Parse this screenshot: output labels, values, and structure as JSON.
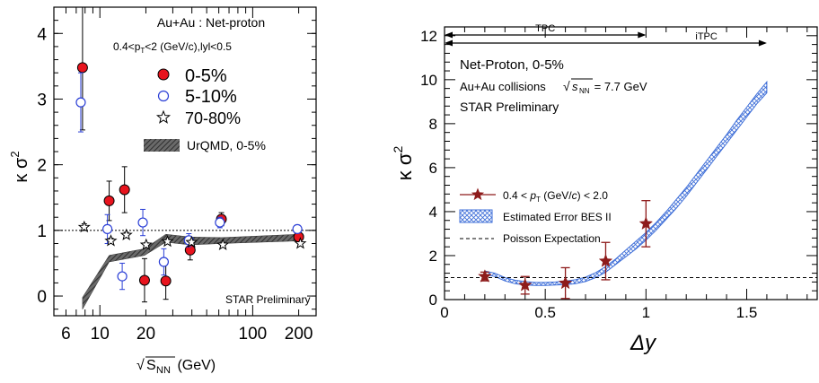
{
  "chart_data": [
    {
      "type": "scatter",
      "x_scale": "log",
      "xlim": [
        5,
        260
      ],
      "ylim": [
        -0.3,
        4.4
      ],
      "xticks": [
        6,
        10,
        20,
        100,
        200
      ],
      "yticks": [
        0,
        1,
        2,
        3,
        4
      ],
      "grid": false,
      "legend_position": "top-right",
      "ylabel_main": "κ σ",
      "ylabel_sup": "2",
      "xlabel_pre": "√",
      "xlabel_sub": "S",
      "xlabel_subscript": "NN",
      "xlabel_post": " (GeV)",
      "annotations": {
        "system": "Au+Au : Net-proton",
        "cuts": "0.4<p",
        "cuts_sub": "T",
        "cuts_rest": "<2 (GeV/c),lyl<0.5",
        "preliminary": "STAR Preliminary"
      },
      "reference_line": {
        "y": 1,
        "style": "dotted"
      },
      "series": [
        {
          "name": "0-5%",
          "marker": "filled-circle",
          "color": "#e8141e",
          "x": [
            7.7,
            11.5,
            14.5,
            19.6,
            27,
            39,
            62.4,
            200
          ],
          "y": [
            3.48,
            1.45,
            1.62,
            0.24,
            0.23,
            0.7,
            1.17,
            0.9
          ],
          "err": [
            0.95,
            0.3,
            0.35,
            0.33,
            0.28,
            0.15,
            0.1,
            0.06
          ]
        },
        {
          "name": "5-10%",
          "marker": "open-circle",
          "color": "#2b3fd6",
          "x": [
            7.5,
            11.2,
            14.0,
            19.1,
            26.2,
            38.2,
            61.0,
            196
          ],
          "y": [
            2.95,
            1.02,
            0.3,
            1.12,
            0.52,
            0.85,
            1.12,
            1.02
          ],
          "err": [
            0.45,
            0.22,
            0.2,
            0.2,
            0.2,
            0.1,
            0.08,
            0.05
          ]
        },
        {
          "name": "70-80%",
          "marker": "open-star",
          "color": "#000000",
          "x": [
            7.9,
            11.8,
            14.9,
            20.1,
            27.7,
            39.8,
            63.8,
            205
          ],
          "y": [
            1.05,
            0.84,
            0.93,
            0.78,
            0.83,
            0.82,
            0.78,
            0.8
          ],
          "err": [
            0.05,
            0.04,
            0.04,
            0.03,
            0.03,
            0.03,
            0.02,
            0.02
          ]
        }
      ],
      "band": {
        "name": "UrQMD, 0-5%",
        "color": "#4a4a4a",
        "x": [
          7.7,
          11.5,
          19.6,
          27,
          39,
          62.4,
          200
        ],
        "lower": [
          -0.2,
          0.52,
          0.62,
          0.82,
          0.78,
          0.8,
          0.84
        ],
        "upper": [
          -0.02,
          0.62,
          0.72,
          0.94,
          0.9,
          0.89,
          0.94
        ]
      }
    },
    {
      "type": "line",
      "xlim": [
        0,
        1.85
      ],
      "ylim": [
        0,
        12.4
      ],
      "xticks": [
        0,
        0.5,
        1,
        1.5
      ],
      "yticks": [
        0,
        2,
        4,
        6,
        8,
        10,
        12
      ],
      "grid": false,
      "legend_position": "middle-left",
      "xlabel": "Δy",
      "ylabel_main": "κ σ",
      "ylabel_sup": "2",
      "annotations": {
        "line1": "Net-Proton, 0-5%",
        "line2_pre": "Au+Au collisions ",
        "line2_root": "√",
        "line2_s": "s",
        "line2_sub": "NN",
        "line2_post": " = 7.7 GeV",
        "line3": "STAR Preliminary",
        "tpc_label": "TPC",
        "itpc_label": "iTPC",
        "tpc_range": [
          0,
          1.0
        ],
        "itpc_range": [
          0,
          1.6
        ]
      },
      "reference_line": {
        "y": 1,
        "style": "dashed",
        "name": "Poisson Expectation"
      },
      "series": [
        {
          "name_pre": "0.4 < ",
          "name_p": "p",
          "name_sub": "T",
          "name_mid": " (GeV/",
          "name_c": "c",
          "name_post": ") < 2.0",
          "marker": "filled-star",
          "color": "#8e1b1b",
          "x": [
            0.2,
            0.4,
            0.6,
            0.8,
            1.0
          ],
          "y": [
            1.05,
            0.65,
            0.75,
            1.75,
            3.45
          ],
          "err": [
            0.2,
            0.4,
            0.7,
            0.85,
            1.05
          ]
        }
      ],
      "band": {
        "name": "Estimated Error BES II",
        "color": "#3f6fd8",
        "x": [
          0.2,
          0.25,
          0.3,
          0.35,
          0.4,
          0.45,
          0.5,
          0.55,
          0.6,
          0.65,
          0.7,
          0.75,
          0.8,
          0.85,
          0.9,
          0.95,
          1.0,
          1.05,
          1.1,
          1.15,
          1.2,
          1.25,
          1.3,
          1.35,
          1.4,
          1.45,
          1.5,
          1.55,
          1.6
        ],
        "lower": [
          1.15,
          1.05,
          0.85,
          0.72,
          0.66,
          0.64,
          0.64,
          0.66,
          0.68,
          0.72,
          0.82,
          1.0,
          1.25,
          1.6,
          1.95,
          2.3,
          2.7,
          3.15,
          3.65,
          4.15,
          4.7,
          5.3,
          5.9,
          6.5,
          7.1,
          7.7,
          8.3,
          8.9,
          9.4
        ],
        "upper": [
          1.3,
          1.2,
          1.0,
          0.88,
          0.82,
          0.78,
          0.78,
          0.8,
          0.84,
          0.9,
          1.02,
          1.22,
          1.5,
          1.85,
          2.25,
          2.65,
          3.05,
          3.5,
          4.0,
          4.55,
          5.1,
          5.7,
          6.3,
          6.9,
          7.5,
          8.15,
          8.75,
          9.35,
          9.9
        ]
      }
    }
  ]
}
